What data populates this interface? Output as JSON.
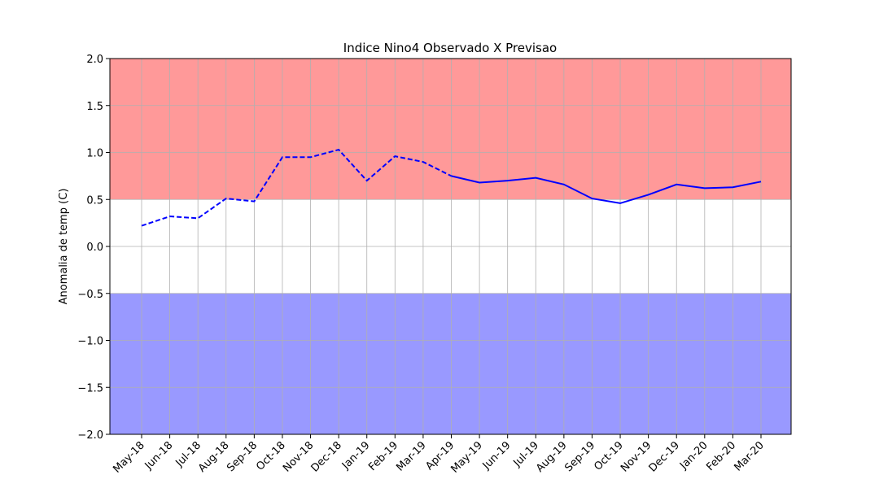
{
  "chart_data": {
    "type": "line",
    "title": "Indice Nino4 Observado X Previsao",
    "ylabel": "Anomalia de temp (C)",
    "categories": [
      "May-18",
      "Jun-18",
      "Jul-18",
      "Aug-18",
      "Sep-18",
      "Oct-18",
      "Nov-18",
      "Dec-18",
      "Jan-19",
      "Feb-19",
      "Mar-19",
      "Apr-19",
      "May-19",
      "Jun-19",
      "Jul-19",
      "Aug-19",
      "Sep-19",
      "Oct-19",
      "Nov-19",
      "Dec-19",
      "Jan-20",
      "Feb-20",
      "Mar-20"
    ],
    "series": [
      {
        "color": "#0000ff",
        "dashed": true,
        "values": [
          0.22,
          0.32,
          0.3,
          0.51,
          0.48,
          0.95,
          0.95,
          1.03,
          0.7,
          0.96,
          0.9,
          0.75,
          null,
          null,
          null,
          null,
          null,
          null,
          null,
          null,
          null,
          null,
          null
        ]
      },
      {
        "color": "#0000ff",
        "dashed": false,
        "values": [
          null,
          null,
          null,
          null,
          null,
          null,
          null,
          null,
          null,
          null,
          null,
          0.75,
          0.68,
          0.7,
          0.73,
          0.66,
          0.51,
          0.46,
          0.55,
          0.66,
          0.62,
          0.63,
          0.69
        ]
      }
    ],
    "bands": [
      {
        "from": 0.5,
        "to": 2.0,
        "color": "#ff9999"
      },
      {
        "from": -2.0,
        "to": -0.5,
        "color": "#9999ff"
      }
    ],
    "ylim": [
      -2.0,
      2.0
    ],
    "yticks": [
      {
        "value": -2.0,
        "label": "−2.0"
      },
      {
        "value": -1.5,
        "label": "−1.5"
      },
      {
        "value": -1.0,
        "label": "−1.0"
      },
      {
        "value": -0.5,
        "label": "−0.5"
      },
      {
        "value": 0.0,
        "label": "0.0"
      },
      {
        "value": 0.5,
        "label": "0.5"
      },
      {
        "value": 1.0,
        "label": "1.0"
      },
      {
        "value": 1.5,
        "label": "1.5"
      },
      {
        "value": 2.0,
        "label": "2.0"
      }
    ],
    "grid": true
  }
}
